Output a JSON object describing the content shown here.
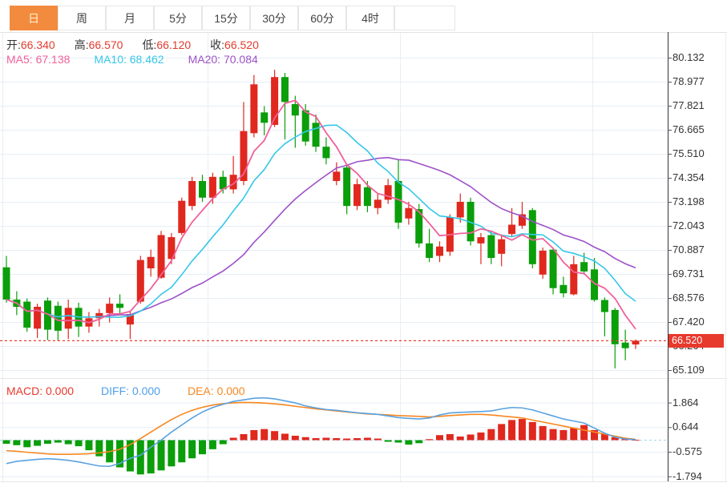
{
  "tabs": {
    "items": [
      {
        "label": "日",
        "selected": true
      },
      {
        "label": "周",
        "selected": false
      },
      {
        "label": "月",
        "selected": false
      },
      {
        "label": "5分",
        "selected": false
      },
      {
        "label": "15分",
        "selected": false
      },
      {
        "label": "30分",
        "selected": false
      },
      {
        "label": "60分",
        "selected": false
      },
      {
        "label": "4时",
        "selected": false
      }
    ]
  },
  "quote": {
    "ohlc": [
      {
        "label": "开:",
        "value": "66.340"
      },
      {
        "label": "高:",
        "value": "66.570"
      },
      {
        "label": "低:",
        "value": "66.120"
      },
      {
        "label": "收:",
        "value": "66.520"
      }
    ],
    "ma": [
      {
        "label": "MA5:",
        "value": "67.138",
        "color": "#f0619a"
      },
      {
        "label": "MA10:",
        "value": "68.462",
        "color": "#35c7e8"
      },
      {
        "label": "MA20:",
        "value": "70.084",
        "color": "#9d52c8"
      }
    ]
  },
  "macd_panel": {
    "legend": [
      {
        "label": "MACD:",
        "value": "0.000",
        "color": "#e8382b"
      },
      {
        "label": "DIFF:",
        "value": "0.000",
        "color": "#4f9fe8"
      },
      {
        "label": "DEA:",
        "value": "0.000",
        "color": "#f6871f"
      }
    ]
  },
  "price_axis": {
    "tick_labels": [
      "80.132",
      "78.977",
      "77.821",
      "76.665",
      "75.510",
      "74.354",
      "73.198",
      "72.043",
      "70.887",
      "69.731",
      "68.576",
      "67.420",
      "66.264",
      "65.109"
    ]
  },
  "macd_axis": {
    "tick_labels": [
      "1.864",
      "0.644",
      "-0.575",
      "-1.794"
    ]
  },
  "current_price": {
    "value": "66.520"
  },
  "colors": {
    "up": "#e0281e",
    "down": "#0a9e0a",
    "ma5": "#f0619a",
    "ma10": "#35c7e8",
    "ma20": "#9d52c8",
    "diff_line": "#5aa2e0",
    "dea_line": "#f6871f",
    "price_line": "#e74033",
    "badge_bg": "#e7392c",
    "value_red": "#e23b2e",
    "tab_selected_bg": "#f28b3e",
    "grid": "#e6eef6",
    "zero_dash": "#a4d6f0"
  },
  "chart_data": {
    "type": "candlestick",
    "title": "",
    "price_axis_ticks": [
      80.132,
      78.977,
      77.821,
      76.665,
      75.51,
      74.354,
      73.198,
      72.043,
      70.887,
      69.731,
      68.576,
      67.42,
      66.264,
      65.109
    ],
    "macd_axis_ticks": [
      1.864,
      0.644,
      -0.575,
      -1.794
    ],
    "current_price": 66.52,
    "ma_periods": [
      5,
      10,
      20
    ],
    "legend_values": {
      "open": 66.34,
      "high": 66.57,
      "low": 66.12,
      "close": 66.52,
      "ma5": 67.138,
      "ma10": 68.462,
      "ma20": 70.084,
      "macd": 0.0,
      "diff": 0.0,
      "dea": 0.0
    },
    "candles": [
      [
        70.05,
        70.6,
        68.35,
        68.5
      ],
      [
        68.5,
        68.9,
        67.75,
        68.15
      ],
      [
        68.4,
        68.55,
        66.95,
        67.15
      ],
      [
        67.1,
        68.3,
        66.65,
        68.15
      ],
      [
        68.45,
        68.6,
        66.55,
        67.05
      ],
      [
        68.2,
        68.4,
        66.5,
        67.0
      ],
      [
        67.1,
        68.5,
        66.6,
        68.1
      ],
      [
        68.1,
        68.35,
        66.7,
        67.2
      ],
      [
        67.2,
        67.9,
        66.9,
        67.6
      ],
      [
        67.6,
        68.05,
        67.2,
        67.85
      ],
      [
        67.85,
        68.6,
        67.4,
        68.3
      ],
      [
        68.3,
        68.75,
        67.8,
        68.1
      ],
      [
        67.3,
        67.95,
        66.6,
        67.8
      ],
      [
        68.4,
        70.6,
        68.3,
        70.4
      ],
      [
        70.0,
        70.9,
        69.6,
        70.55
      ],
      [
        69.55,
        71.8,
        69.5,
        71.6
      ],
      [
        70.45,
        71.7,
        70.2,
        71.5
      ],
      [
        71.7,
        73.4,
        71.6,
        73.25
      ],
      [
        73.0,
        74.4,
        72.8,
        74.2
      ],
      [
        74.2,
        74.5,
        73.2,
        73.4
      ],
      [
        73.4,
        74.6,
        73.1,
        74.4
      ],
      [
        74.4,
        74.7,
        73.6,
        73.8
      ],
      [
        73.8,
        75.4,
        73.6,
        74.5
      ],
      [
        74.2,
        78.0,
        74.0,
        76.6
      ],
      [
        76.5,
        79.3,
        76.3,
        78.85
      ],
      [
        77.5,
        77.8,
        76.4,
        77.0
      ],
      [
        76.9,
        79.55,
        76.8,
        79.2
      ],
      [
        79.2,
        79.4,
        76.2,
        78.0
      ],
      [
        77.9,
        78.3,
        75.8,
        77.35
      ],
      [
        77.6,
        77.9,
        75.9,
        76.1
      ],
      [
        77.0,
        77.4,
        75.6,
        75.85
      ],
      [
        75.85,
        76.3,
        75.0,
        75.3
      ],
      [
        74.2,
        75.1,
        74.0,
        74.65
      ],
      [
        74.85,
        75.0,
        72.6,
        73.0
      ],
      [
        73.0,
        74.3,
        72.8,
        74.05
      ],
      [
        73.9,
        74.2,
        72.7,
        73.0
      ],
      [
        72.9,
        73.6,
        72.6,
        73.3
      ],
      [
        73.3,
        74.3,
        73.1,
        74.0
      ],
      [
        74.2,
        75.2,
        71.9,
        72.2
      ],
      [
        72.4,
        73.2,
        72.1,
        72.9
      ],
      [
        72.85,
        73.1,
        71.0,
        71.2
      ],
      [
        71.2,
        71.9,
        70.3,
        70.5
      ],
      [
        70.6,
        71.3,
        70.3,
        71.05
      ],
      [
        70.8,
        72.6,
        70.6,
        72.45
      ],
      [
        72.45,
        73.6,
        72.2,
        73.2
      ],
      [
        73.2,
        73.4,
        71.1,
        71.3
      ],
      [
        71.2,
        71.7,
        70.2,
        71.5
      ],
      [
        71.6,
        71.8,
        70.2,
        70.5
      ],
      [
        70.7,
        71.6,
        70.1,
        71.4
      ],
      [
        71.65,
        72.9,
        71.5,
        72.1
      ],
      [
        72.05,
        73.2,
        71.9,
        72.6
      ],
      [
        72.8,
        72.9,
        70.0,
        70.2
      ],
      [
        69.7,
        71.0,
        69.5,
        70.85
      ],
      [
        70.9,
        71.0,
        68.75,
        69.05
      ],
      [
        69.2,
        69.6,
        68.6,
        68.8
      ],
      [
        68.75,
        70.6,
        68.7,
        70.2
      ],
      [
        70.3,
        70.75,
        69.7,
        69.85
      ],
      [
        69.95,
        70.5,
        68.4,
        68.48
      ],
      [
        68.48,
        68.6,
        66.73,
        67.9
      ],
      [
        68.0,
        68.1,
        65.19,
        66.35
      ],
      [
        66.43,
        67.05,
        65.58,
        66.16
      ],
      [
        66.34,
        66.57,
        66.12,
        66.52
      ]
    ],
    "macd": {
      "bars": [
        -0.18,
        -0.25,
        -0.35,
        -0.28,
        -0.18,
        -0.12,
        -0.2,
        -0.3,
        -0.5,
        -0.8,
        -1.1,
        -1.35,
        -1.55,
        -1.7,
        -1.65,
        -1.5,
        -1.3,
        -1.1,
        -0.9,
        -0.7,
        -0.45,
        -0.2,
        0.12,
        0.3,
        0.5,
        0.55,
        0.45,
        0.32,
        0.22,
        0.15,
        0.1,
        0.12,
        0.1,
        0.08,
        0.1,
        0.12,
        0.08,
        -0.08,
        -0.12,
        -0.22,
        -0.15,
        0.05,
        0.25,
        0.3,
        0.18,
        0.28,
        0.38,
        0.55,
        0.8,
        1.0,
        1.05,
        0.9,
        0.7,
        0.55,
        0.5,
        0.6,
        0.75,
        0.5,
        0.3,
        0.15,
        0.06,
        0.02
      ],
      "diff": [
        -1.16,
        -1.05,
        -1.0,
        -0.95,
        -0.92,
        -0.95,
        -1.0,
        -1.08,
        -1.18,
        -1.28,
        -1.3,
        -1.15,
        -0.9,
        -0.75,
        -0.35,
        0.0,
        0.4,
        0.75,
        1.1,
        1.4,
        1.62,
        1.78,
        1.92,
        2.0,
        2.08,
        2.1,
        2.05,
        1.95,
        1.85,
        1.7,
        1.6,
        1.52,
        1.48,
        1.42,
        1.36,
        1.32,
        1.28,
        1.2,
        1.12,
        1.08,
        1.05,
        1.1,
        1.25,
        1.35,
        1.38,
        1.4,
        1.42,
        1.45,
        1.55,
        1.62,
        1.6,
        1.5,
        1.35,
        1.2,
        1.05,
        0.95,
        0.85,
        0.6,
        0.35,
        0.15,
        0.06,
        0.03
      ],
      "dea": [
        -0.52,
        -0.55,
        -0.6,
        -0.64,
        -0.68,
        -0.7,
        -0.7,
        -0.69,
        -0.67,
        -0.63,
        -0.57,
        -0.45,
        -0.22,
        0.08,
        0.4,
        0.72,
        1.02,
        1.28,
        1.48,
        1.63,
        1.74,
        1.81,
        1.85,
        1.87,
        1.86,
        1.84,
        1.8,
        1.75,
        1.68,
        1.62,
        1.55,
        1.5,
        1.45,
        1.4,
        1.35,
        1.3,
        1.28,
        1.25,
        1.22,
        1.2,
        1.18,
        1.15,
        1.18,
        1.22,
        1.25,
        1.28,
        1.28,
        1.25,
        1.2,
        1.15,
        1.1,
        1.0,
        0.9,
        0.8,
        0.7,
        0.6,
        0.5,
        0.4,
        0.3,
        0.2,
        0.1,
        0.04
      ]
    }
  }
}
